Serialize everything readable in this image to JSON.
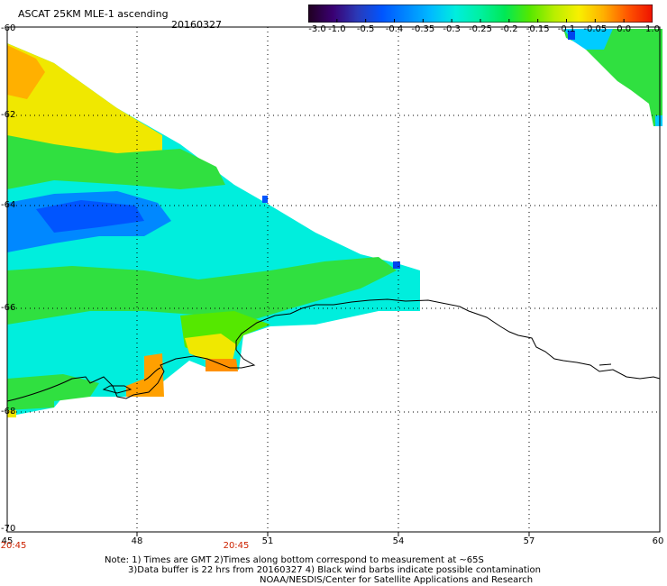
{
  "header": {
    "title": "ASCAT 25KM MLE-1 ascending",
    "date": "20160327"
  },
  "colorbar": {
    "ticks": [
      "-3.0",
      "-1.0",
      "-0.5",
      "-0.4",
      "-0.35",
      "-0.3",
      "-0.25",
      "-0.2",
      "-0.15",
      "-0.1",
      "-0.05",
      "0.0",
      "1.0"
    ],
    "colors": [
      "#200020",
      "#3a0072",
      "#2a3ab8",
      "#0055ff",
      "#0088ff",
      "#00bbff",
      "#00eedd",
      "#00f0a0",
      "#00e855",
      "#55e800",
      "#b8ee00",
      "#f8f000",
      "#ffb000",
      "#ff5500",
      "#ee1100"
    ]
  },
  "axes": {
    "lat_labels": [
      "-60",
      "-62",
      "-64",
      "-66",
      "-68",
      "-70"
    ],
    "lon_labels": [
      "45",
      "48",
      "51",
      "54",
      "57",
      "60"
    ],
    "time_labels": [
      "20:45",
      "20:45"
    ]
  },
  "notes": {
    "line1": "Note: 1) Times are GMT 2)Times along bottom correspond to measurement at ~65S",
    "line2": "3)Data buffer is 22 hrs from 20160327 4) Black wind barbs indicate possible contamination",
    "line3": "NOAA/NESDIS/Center for Satellite Applications and Research"
  }
}
